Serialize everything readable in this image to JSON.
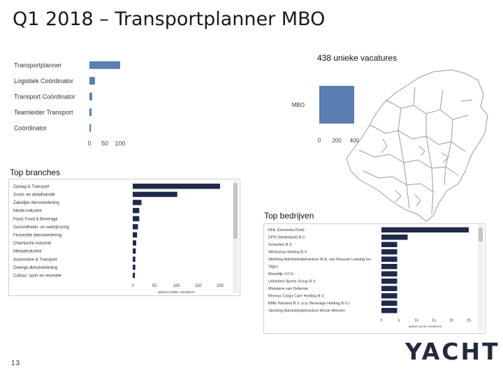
{
  "slide": {
    "title": "Q1 2018 – Transportplanner MBO",
    "page_number": "13",
    "logo_text": "YACHT"
  },
  "sections": {
    "branches_label": "Top branches",
    "companies_label": "Top bedrijven",
    "map_label": "438 unieke vacatures"
  },
  "colors": {
    "light_bar": "#5b7fb0",
    "dark_bar": "#1f2a4a",
    "map_stroke": "#9a9a9a"
  },
  "chart_data": [
    {
      "id": "functions",
      "type": "bar",
      "orientation": "horizontal",
      "categories": [
        "Transportplanner",
        "Logistiek Coördinator",
        "Transport Coördinator",
        "Teamleider Transport",
        "Coördinator"
      ],
      "values": [
        100,
        18,
        9,
        7,
        5
      ],
      "xlim": [
        0,
        100
      ],
      "xticks": [
        0,
        50,
        100
      ],
      "title": "",
      "xlabel": "",
      "ylabel": ""
    },
    {
      "id": "education",
      "type": "bar",
      "orientation": "horizontal",
      "title": "438 unieke vacatures",
      "categories": [
        "MBO"
      ],
      "values": [
        438
      ],
      "xlim": [
        0,
        400
      ],
      "xticks": [
        0,
        200,
        400
      ],
      "xtick_labels": [
        "0",
        "200",
        "400"
      ],
      "xlabel": "",
      "ylabel": ""
    },
    {
      "id": "branches",
      "type": "bar",
      "orientation": "horizontal",
      "title": "Top branches",
      "categories": [
        "Opslag & Transport",
        "Groot- en detailhandel",
        "Zakelijke dienstverlening",
        "Media industrie",
        "Food, Food & Beverage",
        "Gezondheids- en welzijnszorg",
        "Financiële dienstverlening",
        "Chemische industrie",
        "Metaalindustrie",
        "Automotive & Transport",
        "Overige dienstverlening",
        "Cultuur, sport en recreatie"
      ],
      "values": [
        210,
        102,
        20,
        15,
        15,
        12,
        10,
        8,
        7,
        6,
        6,
        5
      ],
      "xlim": [
        0,
        200
      ],
      "xticks": [
        0,
        50,
        100,
        150,
        200
      ],
      "xlabel": "aantal unieke vacatures",
      "ylabel": ""
    },
    {
      "id": "companies",
      "type": "bar",
      "orientation": "horizontal",
      "title": "Top bedrijven",
      "categories": [
        "DHL (Deutsche Post)",
        "DPD (Nederland) B.V.",
        "Schenker B.V.",
        "Wehkamp Holding B.V.",
        "Stichting Administratiekantoor M.A. van Rossum Leasing Inv.",
        "Sligro",
        "Moerdijk V.O.F.",
        "Unlimited Sports Group B.V.",
        "Ministerie van Defensie",
        "Rhenus Cargo Care Holding B.V.",
        "BME Partners B.V. (v.a. Beverage Holding B.V.)",
        "Stichting Administratiekantoor Mooie Mensen"
      ],
      "values": [
        26,
        7.5,
        4.5,
        4.5,
        4.5,
        4.5,
        4.5,
        4.5,
        4.5,
        4.5,
        4.5,
        4.5
      ],
      "xlim": [
        0,
        25
      ],
      "xticks": [
        0,
        5,
        10,
        15,
        20,
        25
      ],
      "xlabel": "aantal unieke vacatures",
      "ylabel": ""
    }
  ]
}
